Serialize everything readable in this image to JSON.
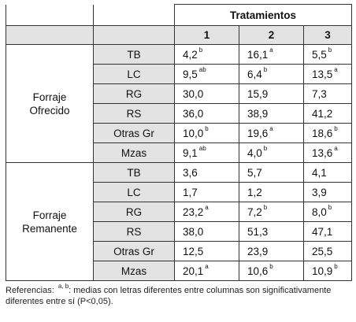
{
  "header": {
    "group_label": "Tratamientos",
    "columns": [
      "1",
      "2",
      "3"
    ]
  },
  "groups": [
    {
      "label_lines": [
        "Forraje",
        "Ofrecido"
      ],
      "rows": [
        {
          "name": "TB",
          "cells": [
            {
              "v": "4,2",
              "s": "b"
            },
            {
              "v": "16,1",
              "s": "a"
            },
            {
              "v": "5,5",
              "s": "b"
            }
          ]
        },
        {
          "name": "LC",
          "cells": [
            {
              "v": "9,5",
              "s": "ab"
            },
            {
              "v": "6,4",
              "s": "b"
            },
            {
              "v": "13,5",
              "s": "a"
            }
          ]
        },
        {
          "name": "RG",
          "cells": [
            {
              "v": "30,0",
              "s": ""
            },
            {
              "v": "15,9",
              "s": ""
            },
            {
              "v": "7,3",
              "s": ""
            }
          ]
        },
        {
          "name": "RS",
          "cells": [
            {
              "v": "36,0",
              "s": ""
            },
            {
              "v": "38,9",
              "s": ""
            },
            {
              "v": "41,2",
              "s": ""
            }
          ]
        },
        {
          "name": "Otras Gr",
          "cells": [
            {
              "v": "10,0",
              "s": "b"
            },
            {
              "v": "19,6",
              "s": "a"
            },
            {
              "v": "18,6",
              "s": "b"
            }
          ]
        },
        {
          "name": "Mzas",
          "cells": [
            {
              "v": "9,1",
              "s": "ab"
            },
            {
              "v": "4,0",
              "s": "b"
            },
            {
              "v": "13,6",
              "s": "a"
            }
          ]
        }
      ]
    },
    {
      "label_lines": [
        "Forraje",
        "Remanente"
      ],
      "rows": [
        {
          "name": "TB",
          "cells": [
            {
              "v": "3,6",
              "s": ""
            },
            {
              "v": "5,7",
              "s": ""
            },
            {
              "v": "4,1",
              "s": ""
            }
          ]
        },
        {
          "name": "LC",
          "cells": [
            {
              "v": "1,7",
              "s": ""
            },
            {
              "v": "1,2",
              "s": ""
            },
            {
              "v": "3,9",
              "s": ""
            }
          ]
        },
        {
          "name": "RG",
          "cells": [
            {
              "v": "23,2",
              "s": "a"
            },
            {
              "v": "7,2",
              "s": "b"
            },
            {
              "v": "8,0",
              "s": "b"
            }
          ]
        },
        {
          "name": "RS",
          "cells": [
            {
              "v": "38,0",
              "s": ""
            },
            {
              "v": "51,3",
              "s": ""
            },
            {
              "v": "47,1",
              "s": ""
            }
          ]
        },
        {
          "name": "Otras Gr",
          "cells": [
            {
              "v": "12,5",
              "s": ""
            },
            {
              "v": "23,9",
              "s": ""
            },
            {
              "v": "25,5",
              "s": ""
            }
          ]
        },
        {
          "name": "Mzas",
          "cells": [
            {
              "v": "20,1",
              "s": "a"
            },
            {
              "v": "10,6",
              "s": "b"
            },
            {
              "v": "10,9",
              "s": "b"
            }
          ]
        }
      ]
    }
  ],
  "footnote": {
    "prefix": "Referencias: ",
    "sup": "a, b",
    "text": ": medias con letras diferentes entre columnas son significativamente diferentes entre sí (P<0,05)."
  }
}
